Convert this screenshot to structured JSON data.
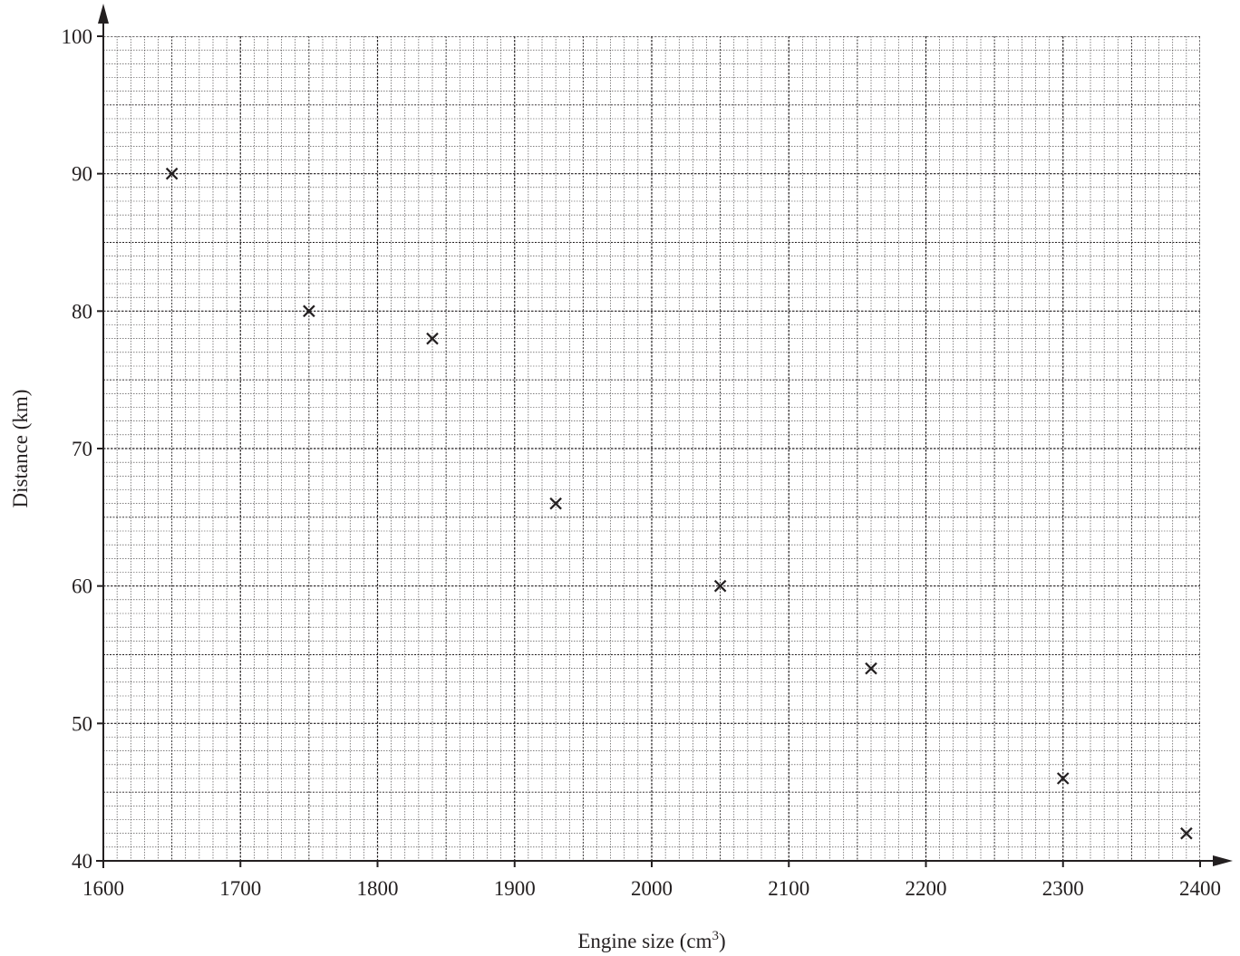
{
  "chart_data": {
    "type": "scatter",
    "title": "",
    "xlabel": "Engine size (cm",
    "xlabel_superscript": "3",
    "xlabel_suffix": ")",
    "ylabel": "Distance (km)",
    "xlim": [
      1600,
      2400
    ],
    "ylim": [
      40,
      100
    ],
    "x_ticks": [
      1600,
      1700,
      1800,
      1900,
      2000,
      2100,
      2200,
      2300,
      2400
    ],
    "y_ticks": [
      40,
      50,
      60,
      70,
      80,
      90,
      100
    ],
    "x_minor_step": 10,
    "y_minor_step": 1,
    "grid": true,
    "marker": "x",
    "x": [
      1650,
      1750,
      1840,
      1930,
      2050,
      2160,
      2300,
      2390
    ],
    "y": [
      90,
      80,
      78,
      66,
      60,
      54,
      46,
      42
    ]
  }
}
